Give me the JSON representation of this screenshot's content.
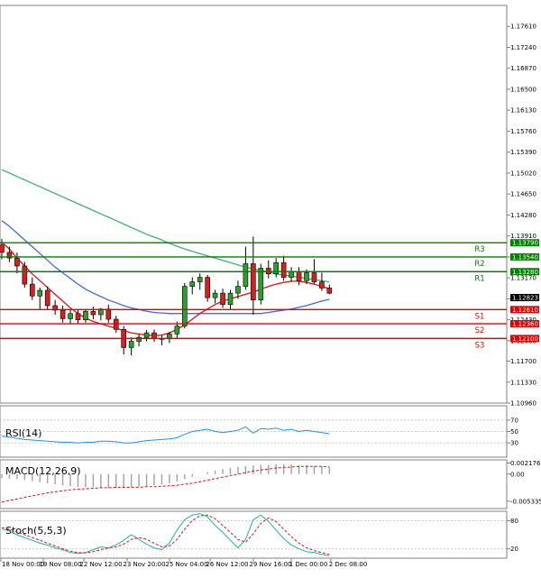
{
  "chart_data": [
    {
      "type": "candlestick",
      "title": "",
      "y_ticks": [
        "1.17610",
        "1.17240",
        "1.16870",
        "1.16500",
        "1.16130",
        "1.15760",
        "1.15390",
        "1.15020",
        "1.14650",
        "1.14280",
        "1.13910",
        "1.13540",
        "1.13170",
        "1.12800",
        "1.12430",
        "1.12060",
        "1.11700",
        "1.11330",
        "1.10960"
      ],
      "ylim": [
        1.1096,
        1.1798
      ],
      "x_ticks": [
        "18 Nov 00:00",
        "19 Nov 08:00",
        "22 Nov 12:00",
        "23 Nov 20:00",
        "25 Nov 04:00",
        "26 Nov 12:00",
        "29 Nov 16:00",
        "1 Dec 00:00",
        "2 Dec 08:00"
      ],
      "levels": [
        {
          "name": "R3",
          "value": 1.1379,
          "label": "1.13790",
          "color": "#008000"
        },
        {
          "name": "R2",
          "value": 1.1354,
          "label": "1.13540",
          "color": "#008000"
        },
        {
          "name": "R1",
          "value": 1.1328,
          "label": "1.13280",
          "color": "#008000"
        },
        {
          "name": "S1",
          "value": 1.1261,
          "label": "1.12610",
          "color": "#e00000"
        },
        {
          "name": "S2",
          "value": 1.1236,
          "label": "1.12360",
          "color": "#e00000"
        },
        {
          "name": "S3",
          "value": 1.121,
          "label": "1.12100",
          "color": "#e00000"
        }
      ],
      "current_price": {
        "value": 1.12823,
        "label": "1.12823"
      },
      "candles": [
        [
          1.1375,
          1.1386,
          1.135,
          1.1362
        ],
        [
          1.1362,
          1.1372,
          1.1345,
          1.1352
        ],
        [
          1.1352,
          1.1362,
          1.1325,
          1.1338
        ],
        [
          1.1338,
          1.1345,
          1.13,
          1.1306
        ],
        [
          1.1306,
          1.1318,
          1.1278,
          1.1285
        ],
        [
          1.1285,
          1.13,
          1.1262,
          1.1295
        ],
        [
          1.1295,
          1.1302,
          1.126,
          1.1268
        ],
        [
          1.1268,
          1.1278,
          1.1252,
          1.126
        ],
        [
          1.126,
          1.1268,
          1.1238,
          1.1245
        ],
        [
          1.1245,
          1.126,
          1.1236,
          1.1254
        ],
        [
          1.1254,
          1.1262,
          1.1236,
          1.1243
        ],
        [
          1.1243,
          1.1262,
          1.1238,
          1.1258
        ],
        [
          1.1258,
          1.1266,
          1.1244,
          1.1252
        ],
        [
          1.1252,
          1.1264,
          1.1242,
          1.1262
        ],
        [
          1.1262,
          1.127,
          1.1238,
          1.1244
        ],
        [
          1.1244,
          1.125,
          1.122,
          1.1226
        ],
        [
          1.1226,
          1.1232,
          1.1182,
          1.1194
        ],
        [
          1.1194,
          1.1212,
          1.118,
          1.1205
        ],
        [
          1.1205,
          1.1218,
          1.1196,
          1.1212
        ],
        [
          1.1212,
          1.1225,
          1.1205,
          1.122
        ],
        [
          1.122,
          1.1226,
          1.1204,
          1.121
        ],
        [
          1.121,
          1.1216,
          1.1198,
          1.121
        ],
        [
          1.121,
          1.1222,
          1.1202,
          1.1218
        ],
        [
          1.1218,
          1.124,
          1.121,
          1.1232
        ],
        [
          1.1232,
          1.1308,
          1.1228,
          1.1302
        ],
        [
          1.1302,
          1.1318,
          1.1288,
          1.131
        ],
        [
          1.131,
          1.1325,
          1.1296,
          1.1318
        ],
        [
          1.1318,
          1.1322,
          1.1275,
          1.1282
        ],
        [
          1.1282,
          1.1296,
          1.1272,
          1.129
        ],
        [
          1.129,
          1.1298,
          1.1264,
          1.127
        ],
        [
          1.127,
          1.1296,
          1.1262,
          1.129
        ],
        [
          1.129,
          1.1312,
          1.128,
          1.1302
        ],
        [
          1.1302,
          1.1372,
          1.1296,
          1.1342
        ],
        [
          1.1342,
          1.139,
          1.1252,
          1.1278
        ],
        [
          1.1278,
          1.1342,
          1.127,
          1.1334
        ],
        [
          1.1334,
          1.1348,
          1.1316,
          1.1324
        ],
        [
          1.1324,
          1.1352,
          1.1318,
          1.1344
        ],
        [
          1.1344,
          1.1356,
          1.1312,
          1.1318
        ],
        [
          1.1318,
          1.1336,
          1.131,
          1.1328
        ],
        [
          1.1328,
          1.1336,
          1.1304,
          1.1312
        ],
        [
          1.1312,
          1.1332,
          1.1306,
          1.1326
        ],
        [
          1.1326,
          1.135,
          1.1306,
          1.131
        ],
        [
          1.131,
          1.1326,
          1.1294,
          1.1299
        ],
        [
          1.1299,
          1.1305,
          1.1288,
          1.129
        ]
      ],
      "ma_fast": [
        1.138,
        1.1368,
        1.1352,
        1.1338,
        1.1324,
        1.1312,
        1.13,
        1.1288,
        1.1276,
        1.1264,
        1.1254,
        1.1246,
        1.124,
        1.1236,
        1.1232,
        1.1228,
        1.1224,
        1.122,
        1.1218,
        1.1216,
        1.1215,
        1.1216,
        1.122,
        1.1226,
        1.1234,
        1.1244,
        1.1254,
        1.1262,
        1.127,
        1.1276,
        1.128,
        1.1284,
        1.1288,
        1.1292,
        1.1297,
        1.1302,
        1.1306,
        1.1309,
        1.1311,
        1.1311,
        1.1309,
        1.1306,
        1.1302,
        1.1298
      ],
      "ma_mid": [
        1.1418,
        1.1408,
        1.1396,
        1.1384,
        1.1372,
        1.136,
        1.1348,
        1.1336,
        1.1326,
        1.1316,
        1.1306,
        1.1297,
        1.129,
        1.1284,
        1.1278,
        1.1273,
        1.1268,
        1.1264,
        1.1261,
        1.1258,
        1.1256,
        1.1255,
        1.1254,
        1.1254,
        1.1254,
        1.1254,
        1.1254,
        1.1254,
        1.1254,
        1.1254,
        1.1254,
        1.1254,
        1.1254,
        1.1254,
        1.1254,
        1.1256,
        1.1258,
        1.126,
        1.1262,
        1.1265,
        1.1268,
        1.1272,
        1.1276,
        1.1279
      ],
      "ma_slow": [
        1.1508,
        1.1502,
        1.1496,
        1.149,
        1.1484,
        1.1478,
        1.1472,
        1.1466,
        1.146,
        1.1454,
        1.1448,
        1.1442,
        1.1436,
        1.143,
        1.1424,
        1.1418,
        1.1412,
        1.1406,
        1.14,
        1.1394,
        1.1389,
        1.1384,
        1.1378,
        1.1373,
        1.1368,
        1.1364,
        1.136,
        1.1356,
        1.1352,
        1.1348,
        1.1344,
        1.134,
        1.1336,
        1.1333,
        1.133,
        1.1327,
        1.1324,
        1.1322,
        1.132,
        1.1318,
        1.1316,
        1.1314,
        1.1312,
        1.131
      ]
    },
    {
      "type": "line",
      "label": "RSI(14)",
      "y_ticks": [
        "70",
        "50",
        "30"
      ],
      "ylim": [
        5,
        95
      ],
      "values": [
        42,
        40,
        38,
        36,
        35,
        34,
        33,
        32,
        31,
        31,
        30,
        31,
        31,
        33,
        33,
        32,
        30,
        30,
        32,
        34,
        35,
        36,
        37,
        39,
        45,
        50,
        52,
        54,
        50,
        48,
        50,
        52,
        58,
        47,
        55,
        54,
        56,
        52,
        54,
        50,
        52,
        50,
        48,
        46
      ]
    },
    {
      "type": "histogram",
      "label": "MACD(12,26,9)",
      "y_ticks": [
        "0.002176",
        "0.00",
        "-0.005335"
      ],
      "ylim": [
        -0.0068,
        0.0028
      ],
      "values": [
        -0.0008,
        -0.0009,
        -0.001,
        -0.0012,
        -0.0014,
        -0.0016,
        -0.0018,
        -0.002,
        -0.0022,
        -0.0024,
        -0.0025,
        -0.0026,
        -0.0026,
        -0.0027,
        -0.0027,
        -0.0027,
        -0.0027,
        -0.0026,
        -0.0025,
        -0.0024,
        -0.0022,
        -0.002,
        -0.0018,
        -0.0015,
        -0.001,
        -0.0005,
        0,
        0.0004,
        0.0007,
        0.001,
        0.0012,
        0.0014,
        0.0016,
        0.0017,
        0.0018,
        0.0018,
        0.0019,
        0.0019,
        0.0019,
        0.0018,
        0.0017,
        0.0016,
        0.0015,
        0.0013
      ],
      "signal": [
        -0.0055,
        -0.0052,
        -0.0049,
        -0.0046,
        -0.0043,
        -0.004,
        -0.0037,
        -0.0035,
        -0.0033,
        -0.0031,
        -0.003,
        -0.0029,
        -0.0028,
        -0.0027,
        -0.0027,
        -0.0026,
        -0.0026,
        -0.0026,
        -0.0026,
        -0.0025,
        -0.0025,
        -0.0024,
        -0.0023,
        -0.0022,
        -0.002,
        -0.0018,
        -0.0015,
        -0.0012,
        -0.0009,
        -0.0006,
        -0.0003,
        0,
        0.0003,
        0.0006,
        0.0008,
        0.001,
        0.0012,
        0.0013,
        0.0014,
        0.0015,
        0.0015,
        0.0015,
        0.0015,
        0.0014
      ]
    },
    {
      "type": "line",
      "label": "Stoch(5,5,3)",
      "y_ticks": [
        "80",
        "20"
      ],
      "ylim": [
        0,
        100
      ],
      "k_values": [
        62,
        58,
        50,
        44,
        38,
        32,
        28,
        22,
        18,
        12,
        10,
        12,
        18,
        24,
        22,
        28,
        38,
        50,
        40,
        30,
        22,
        18,
        32,
        60,
        82,
        92,
        95,
        88,
        70,
        55,
        38,
        22,
        40,
        82,
        92,
        78,
        60,
        42,
        28,
        20,
        14,
        12,
        8,
        5
      ],
      "d_values": [
        65,
        62,
        56,
        50,
        44,
        38,
        32,
        26,
        20,
        15,
        12,
        11,
        14,
        18,
        22,
        24,
        30,
        40,
        44,
        40,
        32,
        24,
        26,
        40,
        62,
        80,
        90,
        92,
        84,
        70,
        55,
        40,
        34,
        52,
        74,
        86,
        78,
        62,
        46,
        32,
        22,
        16,
        12,
        8
      ]
    }
  ]
}
